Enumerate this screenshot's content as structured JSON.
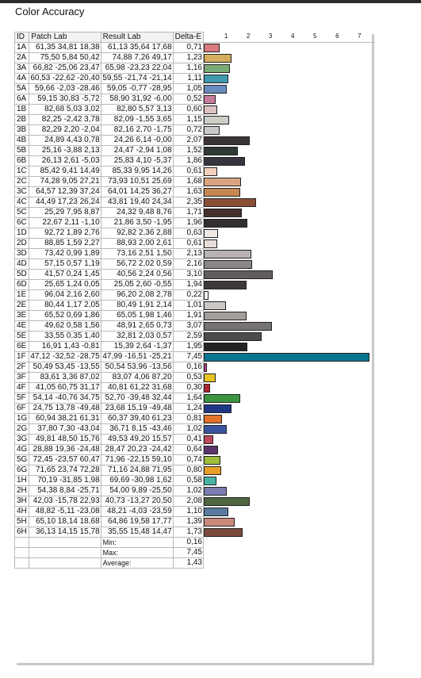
{
  "title": "Color Accuracy",
  "headers": [
    "ID",
    "Patch Lab",
    "Result Lab",
    "Delta-E"
  ],
  "chart_data": {
    "type": "bar",
    "orientation": "horizontal",
    "xlim": [
      0,
      7.7
    ],
    "ticks": [
      1,
      2,
      3,
      4,
      5,
      6,
      7
    ],
    "rows": [
      {
        "id": "1A",
        "patch": "61,35  34,81  18,38",
        "result": "61,13  35,64  17,68",
        "de": "0,71",
        "value": 0.71,
        "color": "#d87a7e"
      },
      {
        "id": "2A",
        "patch": "75,50  5,84  50,42",
        "result": "74,88  7,26  49,17",
        "de": "1,23",
        "value": 1.23,
        "color": "#d4ae5d"
      },
      {
        "id": "3A",
        "patch": "66,82 -25,06  23,47",
        "result": "65,98 -23,23  22,04",
        "de": "1,16",
        "value": 1.16,
        "color": "#7bab74"
      },
      {
        "id": "4A",
        "patch": "60,53 -22,62 -20,40",
        "result": "59,55 -21,74 -21,14",
        "de": "1,11",
        "value": 1.11,
        "color": "#3f9aad"
      },
      {
        "id": "5A",
        "patch": "59,66 -2,03 -28,46",
        "result": "59,05 -0,77 -28,95",
        "de": "1,05",
        "value": 1.05,
        "color": "#6a8cc0"
      },
      {
        "id": "6A",
        "patch": "59,15  30,83  -5,72",
        "result": "58,90  31,92  -6,00",
        "de": "0,52",
        "value": 0.52,
        "color": "#c77d9e"
      },
      {
        "id": "1B",
        "patch": "82,68  5,03  3,02",
        "result": "82,80  5,57  3,13",
        "de": "0,60",
        "value": 0.6,
        "color": "#dcc2c2"
      },
      {
        "id": "2B",
        "patch": "82,25 -2,42  3,78",
        "result": "82,09 -1,55  3,65",
        "de": "1,15",
        "value": 1.15,
        "color": "#cbcfc7"
      },
      {
        "id": "3B",
        "patch": "82,29  2,20 -2,04",
        "result": "82,16  2,70 -1,75",
        "de": "0,72",
        "value": 0.72,
        "color": "#ccc9cd"
      },
      {
        "id": "4B",
        "patch": "24,89  4,43  0,78",
        "result": "24,26  6,14 -0,00",
        "de": "2,07",
        "value": 2.07,
        "color": "#3c3434"
      },
      {
        "id": "5B",
        "patch": "25,16 -3,88  2,13",
        "result": "24,47 -2,94  1,08",
        "de": "1,52",
        "value": 1.52,
        "color": "#303a34"
      },
      {
        "id": "6B",
        "patch": "26,13  2,61 -5,03",
        "result": "25,83  4,10 -5,37",
        "de": "1,86",
        "value": 1.86,
        "color": "#37343f"
      },
      {
        "id": "1C",
        "patch": "85,42  9,41 14,49",
        "result": "85,33  9,95 14,26",
        "de": "0,61",
        "value": 0.61,
        "color": "#f3cfbc"
      },
      {
        "id": "2C",
        "patch": "74,28  9,05 27,21",
        "result": "73,93 10,51 25,69",
        "de": "1,68",
        "value": 1.68,
        "color": "#d8a47f"
      },
      {
        "id": "3C",
        "patch": "64,57 12,39 37,24",
        "result": "64,01 14,25 36,27",
        "de": "1,63",
        "value": 1.63,
        "color": "#c58850"
      },
      {
        "id": "4C",
        "patch": "44,49 17,23 26,24",
        "result": "43,81 19,40 24,34",
        "de": "2,35",
        "value": 2.35,
        "color": "#8a5036"
      },
      {
        "id": "5C",
        "patch": "25,29  7,95  8,87",
        "result": "24,32  9,48  8,76",
        "de": "1,71",
        "value": 1.71,
        "color": "#43302a"
      },
      {
        "id": "6C",
        "patch": "22,67  2,11 -1,10",
        "result": "21,86  3,50 -1,95",
        "de": "1,96",
        "value": 1.96,
        "color": "#332e30"
      },
      {
        "id": "1D",
        "patch": "92,72  1,89  2,76",
        "result": "92,82  2,36  2,88",
        "de": "0,63",
        "value": 0.63,
        "color": "#efe8e4"
      },
      {
        "id": "2D",
        "patch": "88,85  1,59  2,27",
        "result": "88,93  2,00  2,61",
        "de": "0,61",
        "value": 0.61,
        "color": "#e4ddd9"
      },
      {
        "id": "3D",
        "patch": "73,42  0,99  1,89",
        "result": "73,16  2,51  1,50",
        "de": "2,13",
        "value": 2.13,
        "color": "#b8b3b2"
      },
      {
        "id": "4D",
        "patch": "57,15  0,57  1,19",
        "result": "56,72  2,02  0,59",
        "de": "2,16",
        "value": 2.16,
        "color": "#8c8787"
      },
      {
        "id": "5D",
        "patch": "41,57  0,24  1,45",
        "result": "40,56  2,24  0,56",
        "de": "3,10",
        "value": 3.1,
        "color": "#625c5d"
      },
      {
        "id": "6D",
        "patch": "25,65  1,24  0,05",
        "result": "25,05  2,60 -0,55",
        "de": "1,94",
        "value": 1.94,
        "color": "#3d393b"
      },
      {
        "id": "1E",
        "patch": "96,04  2,16  2,60",
        "result": "96,20  2,08  2,78",
        "de": "0,22",
        "value": 0.22,
        "color": "#f8f4f2"
      },
      {
        "id": "2E",
        "patch": "80,44  1,17  2,05",
        "result": "80,49  1,91  2,14",
        "de": "1,01",
        "value": 1.01,
        "color": "#cbc7c5"
      },
      {
        "id": "3E",
        "patch": "65,52  0,69  1,86",
        "result": "65,05  1,98  1,46",
        "de": "1,91",
        "value": 1.91,
        "color": "#a19e9c"
      },
      {
        "id": "4E",
        "patch": "49,62  0,58  1,56",
        "result": "48,91  2,65  0,73",
        "de": "3,07",
        "value": 3.07,
        "color": "#777374"
      },
      {
        "id": "5E",
        "patch": "33,55  0,35  1,40",
        "result": "32,81  2,03  0,57",
        "de": "2,59",
        "value": 2.59,
        "color": "#4d4a4a"
      },
      {
        "id": "6E",
        "patch": "16,91  1,43 -0,81",
        "result": "15,39  2,64 -1,37",
        "de": "1,95",
        "value": 1.95,
        "color": "#242223"
      },
      {
        "id": "1F",
        "patch": "47,12 -32,52 -28,75",
        "result": "47,99 -16,51 -25,21",
        "de": "7,45",
        "value": 7.45,
        "color": "#0a7590"
      },
      {
        "id": "2F",
        "patch": "50,49  53,45 -13,55",
        "result": "50,54  53,96 -13,56",
        "de": "0,16",
        "value": 0.16,
        "color": "#b83e8f"
      },
      {
        "id": "3F",
        "patch": "83,61  3,36  87,02",
        "result": "83,07  4,06  87,20",
        "de": "0,53",
        "value": 0.53,
        "color": "#e8c21e"
      },
      {
        "id": "4F",
        "patch": "41,05  60,75  31,17",
        "result": "40,81  61,22  31,68",
        "de": "0,30",
        "value": 0.3,
        "color": "#b2262e"
      },
      {
        "id": "5F",
        "patch": "54,14 -40,76  34,75",
        "result": "52,70 -39,48  32,44",
        "de": "1,64",
        "value": 1.64,
        "color": "#3c9440"
      },
      {
        "id": "6F",
        "patch": "24,75  13,78 -49,48",
        "result": "23,68  15,19 -49,48",
        "de": "1,24",
        "value": 1.24,
        "color": "#1e3787"
      },
      {
        "id": "1G",
        "patch": "60,94  38,21  61,31",
        "result": "60,37  39,40  61,23",
        "de": "0,81",
        "value": 0.81,
        "color": "#e0722a"
      },
      {
        "id": "2G",
        "patch": "37,80  7,30 -43,04",
        "result": "36,71  8,15 -43,46",
        "de": "1,02",
        "value": 1.02,
        "color": "#3a54a0"
      },
      {
        "id": "3G",
        "patch": "49,81  48,50  15,76",
        "result": "49,53  49,20  15,57",
        "de": "0,41",
        "value": 0.41,
        "color": "#c0485e"
      },
      {
        "id": "4G",
        "patch": "28,88  19,36 -24,48",
        "result": "28,47  20,23 -24,42",
        "de": "0,64",
        "value": 0.64,
        "color": "#5c336d"
      },
      {
        "id": "5G",
        "patch": "72,45 -23,57  60,47",
        "result": "71,96 -22,15  59,10",
        "de": "0,74",
        "value": 0.74,
        "color": "#9dbd3d"
      },
      {
        "id": "6G",
        "patch": "71,65  23,74  72,28",
        "result": "71,16  24,88  71,95",
        "de": "0,80",
        "value": 0.8,
        "color": "#e79e27"
      },
      {
        "id": "1H",
        "patch": "70,19 -31,85  1,98",
        "result": "69,69 -30,98  1,62",
        "de": "0,58",
        "value": 0.58,
        "color": "#48b4a5"
      },
      {
        "id": "2H",
        "patch": "54,38  8,84 -25,71",
        "result": "54,00  9,89 -25,50",
        "de": "1,02",
        "value": 1.02,
        "color": "#7c7bb1"
      },
      {
        "id": "3H",
        "patch": "42,03 -15,78  22,93",
        "result": "40,73 -13,27  20,50",
        "de": "2,08",
        "value": 2.08,
        "color": "#4e6641"
      },
      {
        "id": "4H",
        "patch": "48,82 -5,11 -23,08",
        "result": "48,21 -4,03 -23,59",
        "de": "1,10",
        "value": 1.1,
        "color": "#5a7b9e"
      },
      {
        "id": "5H",
        "patch": "65,10  18,14  18,68",
        "result": "64,86  19,58  17,77",
        "de": "1,39",
        "value": 1.39,
        "color": "#c8897b"
      },
      {
        "id": "6H",
        "patch": "36,13  14,15  15,78",
        "result": "35,55  15,48  14,47",
        "de": "1,73",
        "value": 1.73,
        "color": "#7c4a3d"
      }
    ]
  },
  "summary": [
    {
      "label": "Min:",
      "value": "0,16"
    },
    {
      "label": "Max:",
      "value": "7,45"
    },
    {
      "label": "Average:",
      "value": "1,43"
    }
  ]
}
